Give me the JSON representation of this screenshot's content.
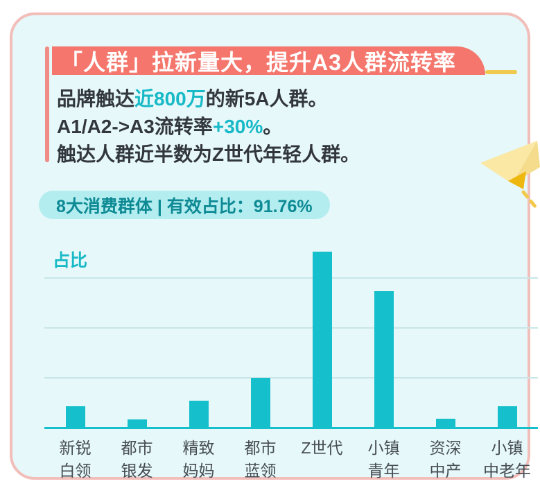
{
  "header": {
    "title": "「人群」拉新量大，提升A3人群流转率"
  },
  "intro": {
    "line1_pre": "品牌触达",
    "line1_em": "近800万",
    "line1_post": "的新5A人群。",
    "line2_pre": "A1/A2->A3流转率",
    "line2_em": "+30%",
    "line2_post": "。",
    "line3": "触达人群近半数为Z世代年轻人群。"
  },
  "badge": {
    "text": "8大消费群体 | 有效占比：91.76%"
  },
  "chart_data": {
    "type": "bar",
    "ylabel": "占比",
    "xlabel": "",
    "categories": [
      "新锐白领",
      "都市银发",
      "精致妈妈",
      "都市蓝领",
      "Z世代",
      "小镇青年",
      "资深中产",
      "小镇中老年"
    ],
    "category_lines": [
      [
        "新锐",
        "白领"
      ],
      [
        "都市",
        "银发"
      ],
      [
        "精致",
        "妈妈"
      ],
      [
        "都市",
        "蓝领"
      ],
      [
        "Z世代"
      ],
      [
        "小镇",
        "青年"
      ],
      [
        "资深",
        "中产"
      ],
      [
        "小镇",
        "中老年"
      ]
    ],
    "values": [
      4.5,
      1.8,
      5.6,
      10.1,
      35.5,
      27.5,
      2.0,
      4.5
    ],
    "unit": "%",
    "ylim": [
      0,
      36
    ],
    "gridlines_pct": [
      10,
      20,
      30
    ],
    "grid": true,
    "legend": false,
    "bar_color": "#15bfcb",
    "effective_total": "91.76%"
  },
  "decor": {
    "icon": "paper-plane-icon"
  },
  "colors": {
    "accent_salmon": "#f4766c",
    "accent_stripe": "#ee8c85",
    "teal": "#15bfcb",
    "teal_text": "#18b9c7",
    "badge_bg": "#b4edf0",
    "badge_text": "#0d8a94",
    "card_bg": "#e6f8f9",
    "card_border": "#f2beba",
    "text_dark": "#32373e",
    "label_gray": "#474d55",
    "yellow": "#f0c94f"
  }
}
